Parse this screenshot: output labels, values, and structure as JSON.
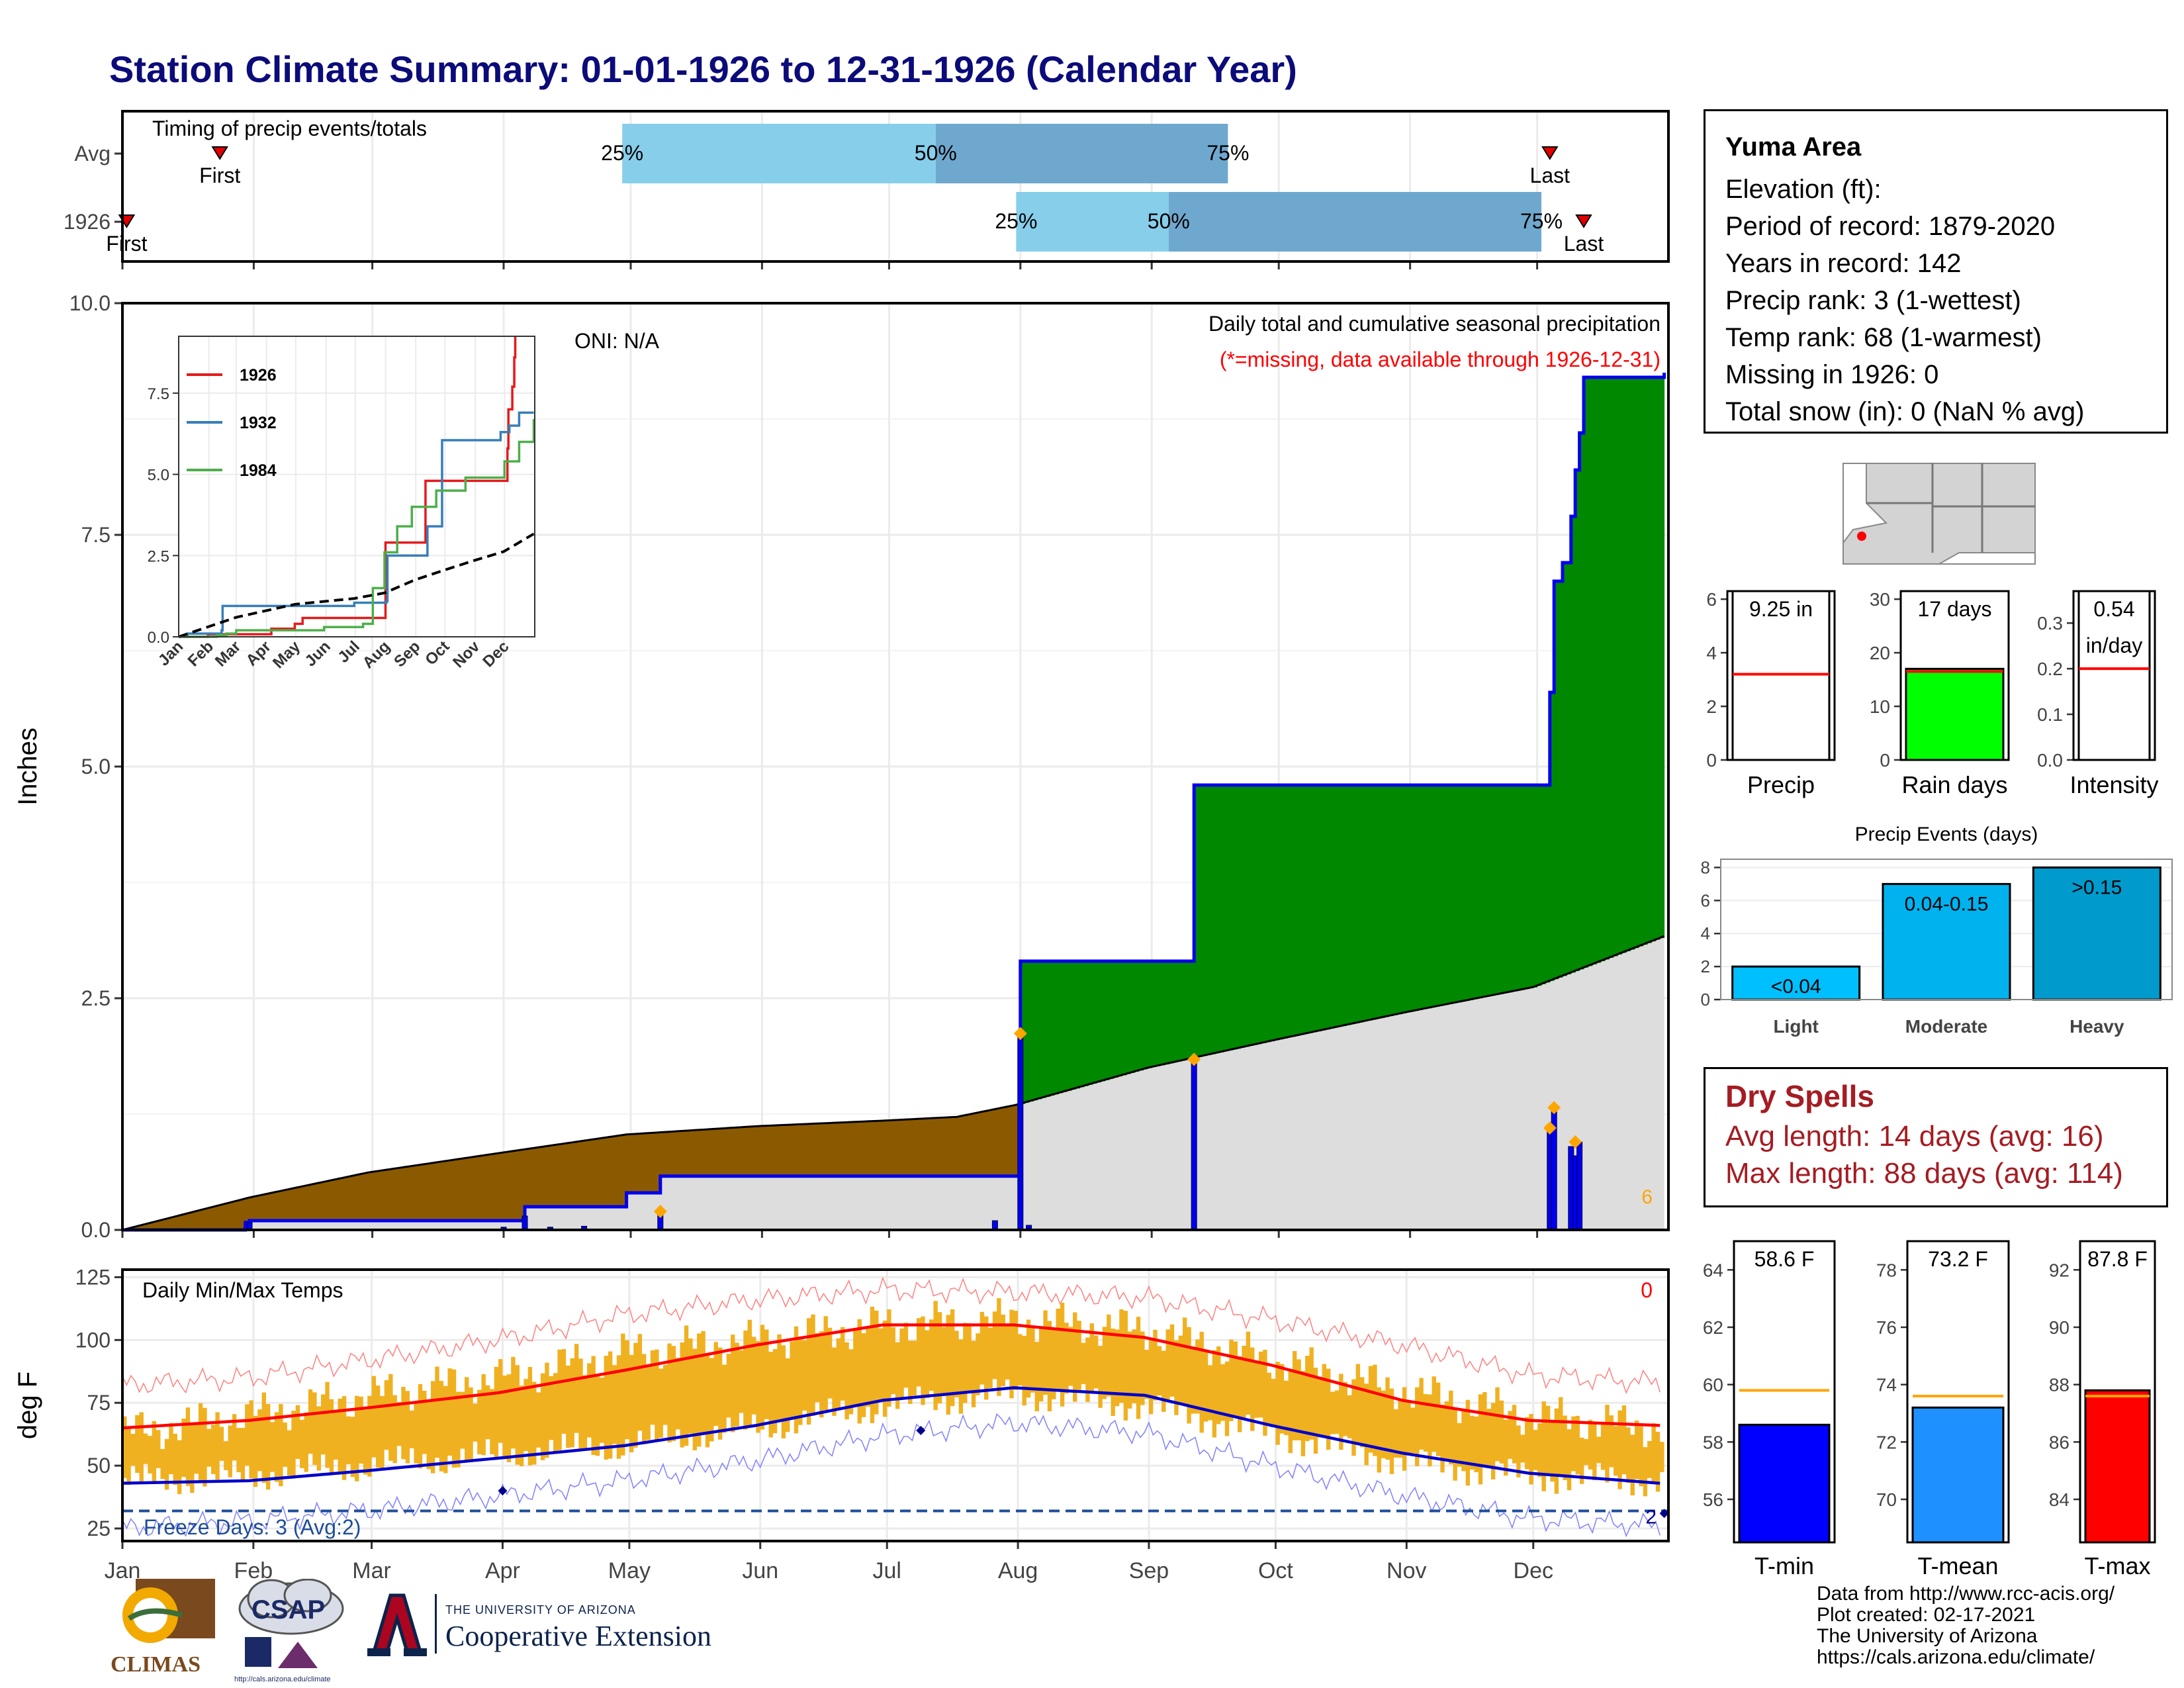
{
  "title": "Station Climate Summary: 01-01-1926 to 12-31-1926 (Calendar Year)",
  "station": {
    "name": "Yuma Area",
    "lines": [
      "Elevation (ft):",
      "Period of record: 1879-2020",
      "Years in record: 142",
      "Precip rank: 3 (1-wettest)",
      "Temp rank: 68 (1-warmest)",
      "Missing in 1926: 0",
      "Total snow (in): 0 (NaN % avg)"
    ]
  },
  "dry_spells": {
    "heading": "Dry Spells",
    "avg": "Avg length: 14 days (avg: 16)",
    "max": "Max length: 88 days (avg: 114)"
  },
  "credits": [
    "Data from http://www.rcc-acis.org/",
    "Plot created: 02-17-2021",
    "The University of Arizona",
    "https://cals.arizona.edu/climate/"
  ],
  "logos": {
    "climas": "CLIMAS",
    "csap": "CSAP",
    "ua_small": "THE UNIVERSITY OF ARIZONA",
    "ua_big": "Cooperative Extension",
    "csap_url": "http://cals.arizona.edu/climate"
  },
  "colors": {
    "title": "#0b0b7a",
    "dry_spell": "#a51c22",
    "wet_fill": "#008800",
    "dry_fill": "#8b5a00",
    "avg_fill": "#dddddd",
    "cum_line": "#0000ee",
    "daily_bar": "#0000ee",
    "event_marker": "#ffa500",
    "temp_bar": "#f0b121",
    "avg_max": "#ff0000",
    "avg_min": "#0000cc",
    "light_q": "#87ceeb",
    "dark_q": "#6fa8ce",
    "light_event": "#00bfff",
    "moderate_event": "#00b2ee",
    "heavy_event": "#009acd"
  },
  "chart_data": [
    {
      "type": "bar",
      "id": "timing",
      "title": "Timing of precip events/totals",
      "categories": [
        "Avg",
        "1926"
      ],
      "x_ticks": [
        "Jan",
        "Feb",
        "Mar",
        "Apr",
        "May",
        "Jun",
        "Jul",
        "Aug",
        "Sep",
        "Oct",
        "Nov",
        "Dec"
      ],
      "rows": [
        {
          "label": "Avg",
          "first_doy": 24,
          "last_doy": 338,
          "q25_doy": 119,
          "q50_doy": 193,
          "q75_doy": 262,
          "first_label": "First",
          "last_label": "Last"
        },
        {
          "label": "1926",
          "first_doy": 2,
          "last_doy": 346,
          "q25_doy": 212,
          "q50_doy": 248,
          "q75_doy": 336,
          "first_label": "First",
          "last_label": "Last"
        }
      ],
      "quantile_labels": [
        "25%",
        "50%",
        "75%"
      ]
    },
    {
      "type": "area",
      "id": "precip",
      "title": "Daily total and cumulative seasonal precipitation",
      "subtitle": "(*=missing, data available through 1926-12-31)",
      "annotation": "ONI: N/A",
      "count_label": "6",
      "ylabel": "Inches",
      "ylim": [
        0,
        10
      ],
      "y_ticks": [
        "0.0",
        "2.5",
        "5.0",
        "7.5",
        "10.0"
      ],
      "cumulative_1926": [
        [
          1,
          0
        ],
        [
          30,
          0.08
        ],
        [
          31,
          0.1
        ],
        [
          90,
          0.1
        ],
        [
          96,
          0.25
        ],
        [
          110,
          0.25
        ],
        [
          120,
          0.4
        ],
        [
          128,
          0.58
        ],
        [
          212,
          0.58
        ],
        [
          213,
          2.9
        ],
        [
          253,
          2.9
        ],
        [
          254,
          4.8
        ],
        [
          337,
          4.8
        ],
        [
          338,
          5.8
        ],
        [
          339,
          7.0
        ],
        [
          341,
          7.2
        ],
        [
          343,
          7.7
        ],
        [
          344,
          8.2
        ],
        [
          345,
          8.6
        ],
        [
          346,
          9.2
        ],
        [
          365,
          9.25
        ]
      ],
      "average": [
        [
          1,
          0
        ],
        [
          31,
          0.35
        ],
        [
          59,
          0.62
        ],
        [
          90,
          0.83
        ],
        [
          120,
          1.03
        ],
        [
          151,
          1.12
        ],
        [
          181,
          1.18
        ],
        [
          198,
          1.22
        ],
        [
          212,
          1.35
        ],
        [
          243,
          1.75
        ],
        [
          273,
          2.05
        ],
        [
          304,
          2.35
        ],
        [
          334,
          2.62
        ],
        [
          365,
          3.17
        ]
      ],
      "daily_1926": [
        [
          31,
          0.08
        ],
        [
          91,
          0.03
        ],
        [
          96,
          0.15
        ],
        [
          102,
          0.03
        ],
        [
          110,
          0.04
        ],
        [
          128,
          0.18
        ],
        [
          207,
          0.1
        ],
        [
          213,
          2.1
        ],
        [
          215,
          0.05
        ],
        [
          254,
          1.8
        ],
        [
          338,
          1.08
        ],
        [
          339,
          1.3
        ],
        [
          343,
          0.9
        ],
        [
          344,
          0.8
        ],
        [
          345,
          0.95
        ]
      ],
      "event_markers": [
        [
          128,
          0.2
        ],
        [
          213,
          2.12
        ],
        [
          254,
          1.84
        ],
        [
          338,
          1.1
        ],
        [
          339,
          1.32
        ],
        [
          344,
          0.95
        ]
      ]
    },
    {
      "type": "line",
      "id": "inset",
      "categories": [
        "Jan",
        "Feb",
        "Mar",
        "Apr",
        "May",
        "Jun",
        "Jul",
        "Aug",
        "Sep",
        "Oct",
        "Nov",
        "Dec"
      ],
      "ylim": [
        0,
        9.25
      ],
      "y_ticks": [
        "0.0",
        "2.5",
        "5.0",
        "7.5"
      ],
      "series": [
        {
          "name": "1926",
          "color": "#e41a1c",
          "values": [
            [
              1,
              0
            ],
            [
              31,
              0.08
            ],
            [
              96,
              0.25
            ],
            [
              120,
              0.4
            ],
            [
              128,
              0.58
            ],
            [
              212,
              0.58
            ],
            [
              213,
              2.9
            ],
            [
              253,
              2.9
            ],
            [
              254,
              4.8
            ],
            [
              337,
              4.8
            ],
            [
              338,
              5.8
            ],
            [
              339,
              7.0
            ],
            [
              343,
              7.7
            ],
            [
              345,
              8.6
            ],
            [
              346,
              9.25
            ]
          ]
        },
        {
          "name": "1932",
          "color": "#377eb8",
          "values": [
            [
              1,
              0
            ],
            [
              10,
              0.1
            ],
            [
              45,
              0.2
            ],
            [
              46,
              0.95
            ],
            [
              180,
              0.95
            ],
            [
              181,
              1.05
            ],
            [
              214,
              1.1
            ],
            [
              215,
              2.5
            ],
            [
              240,
              2.5
            ],
            [
              255,
              2.5
            ],
            [
              256,
              3.4
            ],
            [
              270,
              3.4
            ],
            [
              271,
              6.05
            ],
            [
              330,
              6.05
            ],
            [
              331,
              6.3
            ],
            [
              340,
              6.5
            ],
            [
              350,
              6.9
            ],
            [
              365,
              6.9
            ]
          ]
        },
        {
          "name": "1984",
          "color": "#4daf4a",
          "values": [
            [
              1,
              0
            ],
            [
              40,
              0.05
            ],
            [
              50,
              0.1
            ],
            [
              60,
              0.2
            ],
            [
              150,
              0.3
            ],
            [
              190,
              0.4
            ],
            [
              200,
              1.5
            ],
            [
              212,
              2.6
            ],
            [
              220,
              2.6
            ],
            [
              225,
              3.4
            ],
            [
              235,
              3.4
            ],
            [
              240,
              4.0
            ],
            [
              260,
              4.0
            ],
            [
              265,
              4.5
            ],
            [
              290,
              4.5
            ],
            [
              295,
              4.9
            ],
            [
              330,
              4.9
            ],
            [
              335,
              5.4
            ],
            [
              350,
              6.0
            ],
            [
              365,
              6.7
            ]
          ]
        },
        {
          "name": "avg",
          "color": "#000000",
          "dashed": true,
          "values": [
            [
              1,
              0
            ],
            [
              60,
              0.6
            ],
            [
              120,
              1.0
            ],
            [
              181,
              1.18
            ],
            [
              212,
              1.35
            ],
            [
              243,
              1.75
            ],
            [
              273,
              2.05
            ],
            [
              304,
              2.35
            ],
            [
              334,
              2.62
            ],
            [
              365,
              3.17
            ]
          ]
        }
      ]
    },
    {
      "type": "line",
      "id": "temps",
      "title": "Daily Min/Max Temps",
      "ylabel": "deg F",
      "ylim": [
        20,
        128
      ],
      "y_ticks": [
        "25",
        "50",
        "75",
        "100",
        "125"
      ],
      "x_ticks": [
        "Jan",
        "Feb",
        "Mar",
        "Apr",
        "May",
        "Jun",
        "Jul",
        "Aug",
        "Sep",
        "Oct",
        "Nov",
        "Dec"
      ],
      "count_label_top": "0",
      "count_label_bottom": "2",
      "freeze_label": "Freeze Days: 3 (Avg:2)",
      "freeze_line": 32,
      "avg_max": [
        [
          1,
          65
        ],
        [
          31,
          68
        ],
        [
          59,
          73
        ],
        [
          90,
          79
        ],
        [
          120,
          88
        ],
        [
          151,
          98
        ],
        [
          181,
          106
        ],
        [
          212,
          106
        ],
        [
          243,
          101
        ],
        [
          273,
          90
        ],
        [
          304,
          76
        ],
        [
          334,
          68
        ],
        [
          365,
          66
        ]
      ],
      "avg_min": [
        [
          1,
          43
        ],
        [
          31,
          44
        ],
        [
          59,
          48
        ],
        [
          90,
          53
        ],
        [
          120,
          58
        ],
        [
          151,
          66
        ],
        [
          181,
          76
        ],
        [
          212,
          81
        ],
        [
          243,
          78
        ],
        [
          273,
          66
        ],
        [
          304,
          55
        ],
        [
          334,
          47
        ],
        [
          365,
          43
        ]
      ],
      "rec_max": [
        [
          1,
          82
        ],
        [
          31,
          85
        ],
        [
          59,
          92
        ],
        [
          90,
          100
        ],
        [
          120,
          110
        ],
        [
          151,
          116
        ],
        [
          181,
          120
        ],
        [
          212,
          119
        ],
        [
          243,
          117
        ],
        [
          273,
          108
        ],
        [
          304,
          98
        ],
        [
          334,
          86
        ],
        [
          365,
          83
        ]
      ],
      "rec_min": [
        [
          1,
          25
        ],
        [
          31,
          28
        ],
        [
          59,
          32
        ],
        [
          90,
          38
        ],
        [
          120,
          44
        ],
        [
          151,
          52
        ],
        [
          181,
          62
        ],
        [
          212,
          67
        ],
        [
          243,
          63
        ],
        [
          273,
          50
        ],
        [
          304,
          38
        ],
        [
          334,
          29
        ],
        [
          365,
          26
        ]
      ],
      "obs_max": [
        [
          1,
          63
        ],
        [
          31,
          70
        ],
        [
          59,
          78
        ],
        [
          90,
          85
        ],
        [
          120,
          95
        ],
        [
          151,
          100
        ],
        [
          181,
          106
        ],
        [
          212,
          108
        ],
        [
          243,
          104
        ],
        [
          273,
          92
        ],
        [
          304,
          80
        ],
        [
          334,
          70
        ],
        [
          365,
          65
        ]
      ],
      "obs_min": [
        [
          1,
          44
        ],
        [
          31,
          46
        ],
        [
          59,
          50
        ],
        [
          90,
          54
        ],
        [
          120,
          58
        ],
        [
          151,
          65
        ],
        [
          181,
          74
        ],
        [
          212,
          79
        ],
        [
          243,
          74
        ],
        [
          273,
          63
        ],
        [
          304,
          52
        ],
        [
          334,
          46
        ],
        [
          365,
          44
        ]
      ],
      "markers": [
        [
          91,
          40
        ],
        [
          190,
          64
        ],
        [
          366,
          31
        ]
      ]
    },
    {
      "type": "bar",
      "id": "precip_total",
      "xlabel": "Precip",
      "value_label": "9.25 in",
      "value": 9.25,
      "avg": 3.2,
      "ylim": [
        0,
        6.3
      ],
      "y_ticks": [
        "0",
        "2",
        "4",
        "6"
      ],
      "fill": "#ffffff"
    },
    {
      "type": "bar",
      "id": "rain_days",
      "xlabel": "Rain days",
      "value_label": "17 days",
      "value": 17,
      "avg": 16.5,
      "ylim": [
        0,
        31.5
      ],
      "y_ticks": [
        "0",
        "10",
        "20",
        "30"
      ],
      "fill": "#00ff00"
    },
    {
      "type": "bar",
      "id": "intensity",
      "xlabel": "Intensity",
      "value_label": "0.54\nin/day",
      "value_label_lines": [
        "0.54",
        "in/day"
      ],
      "value": 0.54,
      "avg": 0.2,
      "ylim": [
        0,
        0.37
      ],
      "y_ticks": [
        "0.0",
        "0.1",
        "0.2",
        "0.3"
      ],
      "fill": "#ffffff"
    },
    {
      "type": "bar",
      "id": "events",
      "title": "Precip Events (days)",
      "categories": [
        "Light",
        "Moderate",
        "Heavy"
      ],
      "values": [
        2,
        7,
        8
      ],
      "bar_labels": [
        "<0.04",
        "0.04-0.15",
        ">0.15"
      ],
      "ylim": [
        0,
        8.5
      ],
      "y_ticks": [
        "0",
        "2",
        "4",
        "6",
        "8"
      ]
    },
    {
      "type": "bar",
      "id": "tmin",
      "xlabel": "T-min",
      "value_label": "58.6 F",
      "value": 58.6,
      "avg": 59.8,
      "ylim": [
        54.5,
        65
      ],
      "y_ticks": [
        "56",
        "58",
        "60",
        "62",
        "64"
      ],
      "fill": "#0000ff"
    },
    {
      "type": "bar",
      "id": "tmean",
      "xlabel": "T-mean",
      "value_label": "73.2 F",
      "value": 73.2,
      "avg": 73.6,
      "ylim": [
        68.5,
        79
      ],
      "y_ticks": [
        "70",
        "72",
        "74",
        "76",
        "78"
      ],
      "fill": "#1e90ff"
    },
    {
      "type": "bar",
      "id": "tmax",
      "xlabel": "T-max",
      "value_label": "87.8 F",
      "value": 87.8,
      "avg": 87.6,
      "ylim": [
        82.5,
        93
      ],
      "y_ticks": [
        "84",
        "86",
        "88",
        "90",
        "92"
      ],
      "fill": "#ff0000"
    }
  ]
}
